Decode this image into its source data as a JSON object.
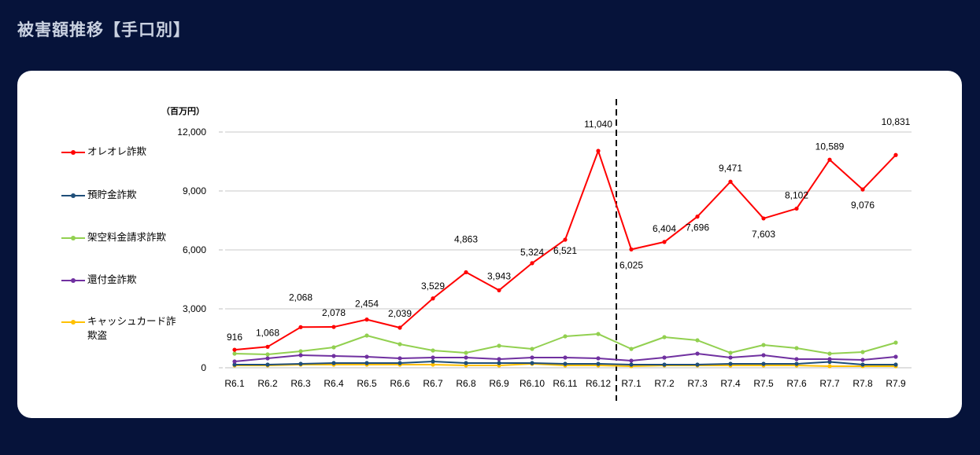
{
  "page": {
    "title": "被害額推移【手口別】"
  },
  "chart_data": {
    "type": "line",
    "title": "被害額推移【手口別】",
    "ylabel": "（百万円）",
    "xlabel": "",
    "ylim": [
      0,
      12000
    ],
    "yticks": [
      0,
      3000,
      6000,
      9000,
      12000
    ],
    "ytick_labels": [
      "0",
      "3,000",
      "6,000",
      "9,000",
      "12,000"
    ],
    "grid": true,
    "legend_position": "left",
    "divider_after_category": "R6.12",
    "categories": [
      "R6.1",
      "R6.2",
      "R6.3",
      "R6.4",
      "R6.5",
      "R6.6",
      "R6.7",
      "R6.8",
      "R6.9",
      "R6.10",
      "R6.11",
      "R6.12",
      "R7.1",
      "R7.2",
      "R7.3",
      "R7.4",
      "R7.5",
      "R7.6",
      "R7.7",
      "R7.8",
      "R7.9"
    ],
    "series": [
      {
        "name": "オレオレ詐欺",
        "color": "#ff0000",
        "show_labels": true,
        "values": [
          916,
          1068,
          2068,
          2078,
          2454,
          2039,
          3529,
          4863,
          3943,
          5324,
          6521,
          11040,
          6025,
          6404,
          7696,
          9471,
          7603,
          8102,
          10589,
          9076,
          10831
        ],
        "labels": [
          "916",
          "1,068",
          "2,068",
          "2,078",
          "2,454",
          "2,039",
          "3,529",
          "4,863",
          "3,943",
          "5,324",
          "6,521",
          "11,040",
          "6,025",
          "6,404",
          "7,696",
          "9,471",
          "7,603",
          "8,102",
          "10,589",
          "9,076",
          "10,831"
        ]
      },
      {
        "name": "預貯金詐欺",
        "color": "#1f4e79",
        "show_labels": false,
        "values": [
          160,
          160,
          200,
          240,
          240,
          240,
          320,
          240,
          240,
          240,
          200,
          200,
          160,
          160,
          160,
          200,
          200,
          200,
          300,
          160,
          160
        ]
      },
      {
        "name": "架空料金請求詐欺",
        "color": "#92d050",
        "show_labels": false,
        "values": [
          720,
          680,
          840,
          1040,
          1640,
          1200,
          880,
          760,
          1120,
          960,
          1600,
          1720,
          960,
          1560,
          1400,
          760,
          1160,
          1000,
          720,
          800,
          1280
        ]
      },
      {
        "name": "還付金詐欺",
        "color": "#7030a0",
        "show_labels": false,
        "values": [
          320,
          480,
          640,
          600,
          560,
          480,
          520,
          520,
          440,
          520,
          520,
          480,
          360,
          520,
          720,
          520,
          640,
          440,
          440,
          400,
          560
        ]
      },
      {
        "name": "キャッシュカード詐欺盗",
        "color": "#ffc000",
        "show_labels": false,
        "values": [
          120,
          120,
          160,
          160,
          160,
          160,
          160,
          120,
          120,
          200,
          120,
          120,
          80,
          120,
          120,
          120,
          120,
          120,
          80,
          80,
          80
        ]
      }
    ]
  }
}
